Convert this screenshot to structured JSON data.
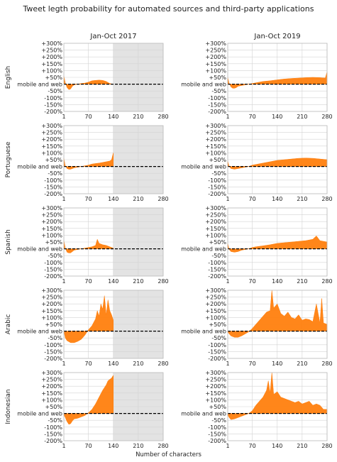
{
  "title": "Tweet legth probability for automated sources and third-party applications",
  "xlabel": "Number of characters",
  "baseline_label": "mobile and web",
  "colors": {
    "fill": "#ff7f0e",
    "shade": "#e3e3e3",
    "grid": "#d3d3d3",
    "axis": "#222222"
  },
  "chart_data": {
    "type": "area",
    "columns": [
      "Jan-Oct 2017",
      "Jan-Oct 2019"
    ],
    "rows": [
      "English",
      "Portuguese",
      "Spanish",
      "Arabic",
      "Indonesian"
    ],
    "xlim": [
      1,
      280
    ],
    "x_ticks": [
      1,
      70,
      140,
      210,
      280
    ],
    "x_tick_labels": [
      "1",
      "70",
      "140",
      "210",
      "280"
    ],
    "ylim": [
      -200,
      300
    ],
    "y_ticks": [
      300,
      250,
      200,
      150,
      100,
      50,
      0,
      -50,
      -100,
      -150,
      -200
    ],
    "y_tick_labels": [
      "+300%",
      "+250%",
      "+200%",
      "+150%",
      "+100%",
      "+50%",
      "mobile and web",
      "-50%",
      "-100%",
      "-150%",
      "-200%"
    ],
    "shaded_region_2017": [
      140,
      280
    ],
    "series": [
      {
        "row": "English",
        "column": "Jan-Oct 2017",
        "x": [
          1,
          5,
          10,
          15,
          20,
          25,
          30,
          40,
          50,
          60,
          70,
          80,
          90,
          100,
          110,
          120,
          130,
          140
        ],
        "y": [
          60,
          10,
          -25,
          -40,
          -35,
          -15,
          -5,
          0,
          5,
          8,
          15,
          25,
          28,
          30,
          28,
          20,
          5,
          0
        ]
      },
      {
        "row": "English",
        "column": "Jan-Oct 2019",
        "x": [
          1,
          5,
          10,
          15,
          20,
          25,
          30,
          40,
          50,
          60,
          70,
          80,
          100,
          120,
          140,
          160,
          180,
          200,
          220,
          240,
          260,
          275,
          280
        ],
        "y": [
          50,
          5,
          -20,
          -30,
          -30,
          -25,
          -15,
          -10,
          -5,
          0,
          5,
          10,
          20,
          25,
          32,
          38,
          42,
          45,
          48,
          50,
          48,
          45,
          90
        ]
      },
      {
        "row": "Portuguese",
        "column": "Jan-Oct 2017",
        "x": [
          1,
          5,
          10,
          15,
          20,
          25,
          30,
          40,
          50,
          60,
          70,
          80,
          90,
          100,
          110,
          120,
          130,
          135,
          140
        ],
        "y": [
          60,
          5,
          -15,
          -20,
          -20,
          -15,
          -10,
          -5,
          0,
          5,
          10,
          18,
          22,
          25,
          30,
          35,
          40,
          50,
          100
        ]
      },
      {
        "row": "Portuguese",
        "column": "Jan-Oct 2019",
        "x": [
          1,
          5,
          10,
          20,
          30,
          40,
          50,
          60,
          70,
          80,
          100,
          120,
          140,
          160,
          180,
          200,
          220,
          240,
          260,
          280
        ],
        "y": [
          40,
          0,
          -15,
          -20,
          -15,
          -10,
          -5,
          0,
          10,
          15,
          25,
          35,
          45,
          50,
          55,
          60,
          62,
          60,
          55,
          50
        ]
      },
      {
        "row": "Spanish",
        "column": "Jan-Oct 2017",
        "x": [
          1,
          5,
          10,
          15,
          20,
          25,
          30,
          40,
          50,
          60,
          70,
          80,
          90,
          95,
          100,
          110,
          120,
          130,
          140
        ],
        "y": [
          60,
          5,
          -25,
          -30,
          -30,
          -20,
          -10,
          -5,
          0,
          5,
          10,
          15,
          25,
          70,
          40,
          30,
          25,
          15,
          5
        ]
      },
      {
        "row": "Spanish",
        "column": "Jan-Oct 2019",
        "x": [
          1,
          5,
          10,
          20,
          30,
          40,
          50,
          60,
          70,
          80,
          100,
          120,
          140,
          160,
          180,
          200,
          220,
          240,
          250,
          260,
          270,
          280
        ],
        "y": [
          40,
          -5,
          -20,
          -25,
          -20,
          -10,
          -5,
          0,
          10,
          15,
          22,
          30,
          40,
          45,
          50,
          55,
          60,
          70,
          95,
          60,
          55,
          50
        ]
      },
      {
        "row": "Arabic",
        "column": "Jan-Oct 2017",
        "x": [
          1,
          5,
          10,
          20,
          30,
          40,
          50,
          60,
          70,
          80,
          90,
          95,
          100,
          105,
          110,
          115,
          120,
          125,
          130,
          135,
          140
        ],
        "y": [
          0,
          -50,
          -70,
          -85,
          -85,
          -75,
          -60,
          -30,
          10,
          40,
          90,
          150,
          110,
          200,
          160,
          260,
          120,
          230,
          150,
          120,
          80
        ]
      },
      {
        "row": "Arabic",
        "column": "Jan-Oct 2019",
        "x": [
          1,
          5,
          10,
          20,
          30,
          40,
          50,
          60,
          70,
          80,
          90,
          100,
          110,
          120,
          125,
          130,
          140,
          150,
          160,
          170,
          180,
          190,
          200,
          210,
          220,
          230,
          240,
          250,
          260,
          265,
          270,
          280
        ],
        "y": [
          -5,
          -20,
          -35,
          -45,
          -45,
          -35,
          -20,
          -5,
          20,
          50,
          80,
          110,
          140,
          150,
          300,
          170,
          200,
          130,
          110,
          140,
          100,
          90,
          120,
          80,
          90,
          85,
          70,
          200,
          60,
          240,
          60,
          50
        ]
      },
      {
        "row": "Indonesian",
        "column": "Jan-Oct 2017",
        "x": [
          1,
          5,
          10,
          15,
          20,
          25,
          30,
          40,
          50,
          60,
          70,
          80,
          90,
          100,
          110,
          120,
          125,
          130,
          135,
          140
        ],
        "y": [
          -10,
          -30,
          -60,
          -80,
          -75,
          -55,
          -40,
          -35,
          -25,
          -15,
          5,
          30,
          70,
          120,
          170,
          210,
          240,
          250,
          260,
          280
        ]
      },
      {
        "row": "Indonesian",
        "column": "Jan-Oct 2019",
        "x": [
          1,
          5,
          10,
          20,
          30,
          40,
          50,
          60,
          70,
          80,
          90,
          100,
          110,
          115,
          120,
          125,
          130,
          140,
          150,
          160,
          170,
          180,
          190,
          200,
          210,
          220,
          230,
          240,
          250,
          260,
          270,
          280
        ],
        "y": [
          -10,
          -30,
          -45,
          -40,
          -30,
          -20,
          -10,
          0,
          20,
          60,
          90,
          120,
          170,
          240,
          150,
          300,
          140,
          160,
          120,
          110,
          100,
          90,
          80,
          90,
          70,
          80,
          90,
          60,
          70,
          60,
          30,
          30
        ]
      }
    ]
  }
}
